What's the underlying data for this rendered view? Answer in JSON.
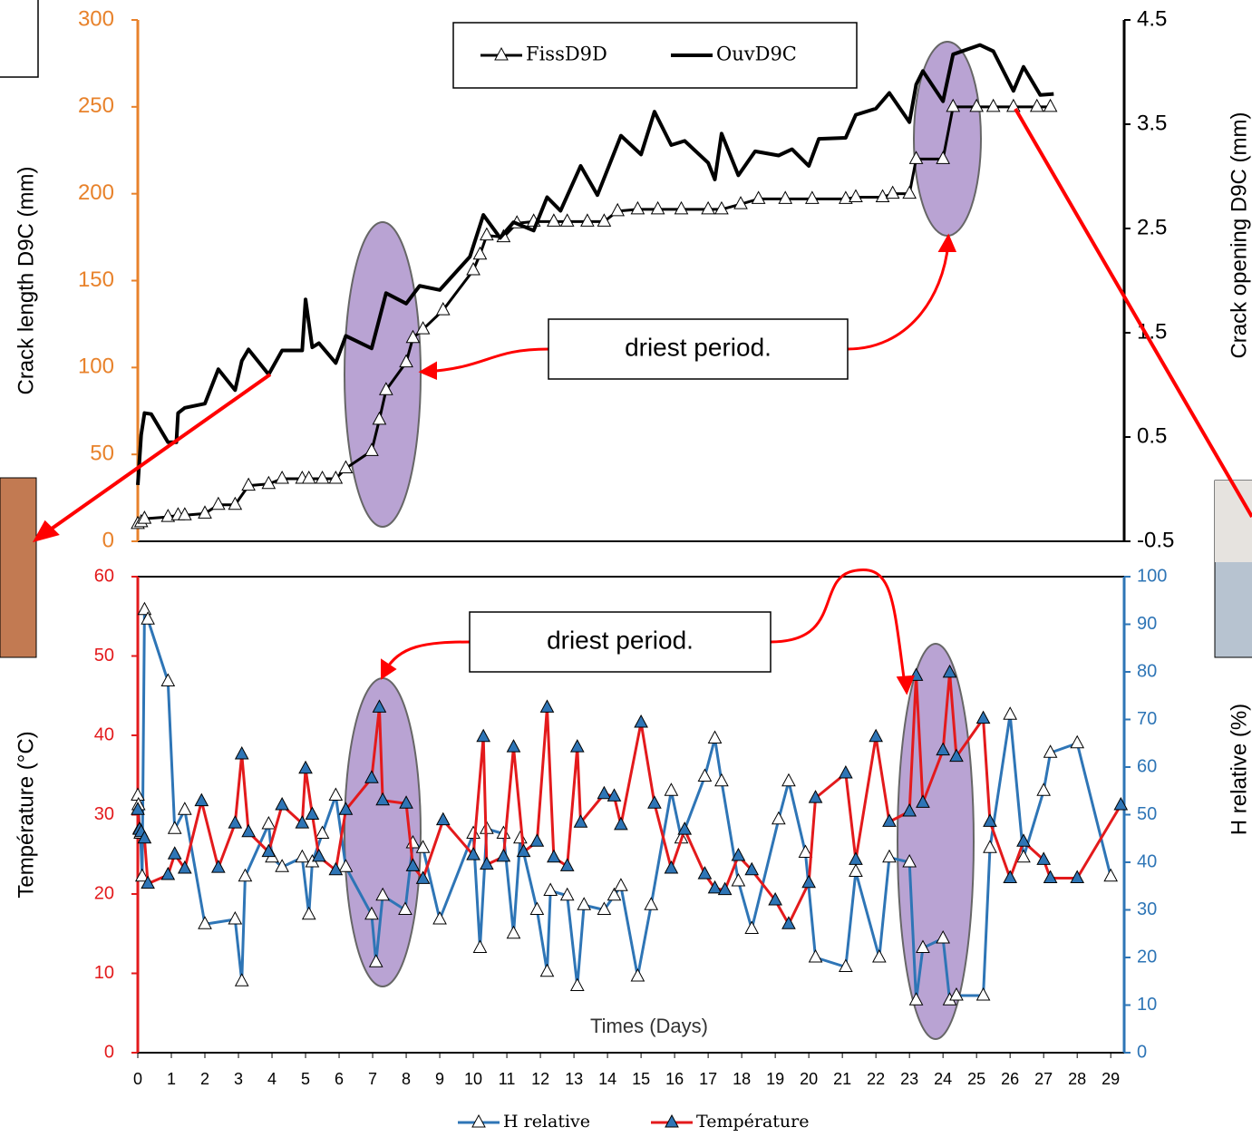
{
  "chart_data": [
    {
      "type": "line",
      "ylabel": "Crack length D9C (mm)",
      "y2label": "Crack opening  D9C (mm)",
      "xlim": [
        0,
        29.4
      ],
      "ylim": [
        0,
        300
      ],
      "yticks": [
        0,
        50,
        100,
        150,
        200,
        250,
        300
      ],
      "y2lim": [
        -0.5,
        4.5
      ],
      "y2ticks": [
        -0.5,
        0.5,
        1.5,
        2.5,
        3.5,
        4.5
      ],
      "y_axis_color": "#e8822b",
      "y2_axis_color": "#000000",
      "legend_position": "top-center",
      "legend_box": true,
      "annotations": [
        "driest period."
      ],
      "series": [
        {
          "name": "FissD9D",
          "color": "#000000",
          "marker": "triangle",
          "marker_fill": "#ffffff",
          "axis": "y",
          "x": [
            0,
            0.1,
            0.2,
            0.9,
            1.2,
            1.4,
            2.0,
            2.4,
            2.9,
            3.3,
            3.9,
            4.3,
            4.9,
            5.1,
            5.5,
            5.9,
            6.2,
            6.97,
            7.2,
            7.4,
            8.0,
            8.2,
            8.5,
            9.1,
            10.0,
            10.2,
            10.4,
            10.9,
            11.3,
            11.8,
            12.4,
            12.8,
            13.4,
            13.9,
            14.3,
            14.9,
            15.5,
            16.2,
            17.0,
            17.4,
            17.97,
            18.5,
            19.3,
            20.1,
            21.1,
            21.4,
            22.2,
            22.5,
            23.0,
            23.2,
            24.0,
            24.3,
            25.0,
            25.5,
            26.1,
            26.8,
            27.2
          ],
          "values": [
            10,
            11,
            13,
            14,
            15,
            15,
            16,
            21,
            21,
            32,
            33,
            36,
            36,
            36,
            36,
            36,
            42,
            52,
            70,
            87,
            103,
            117,
            122,
            133,
            156,
            165,
            176,
            175,
            183,
            184,
            184,
            184,
            184,
            184,
            190,
            191,
            191,
            191,
            191,
            191,
            194,
            197,
            197,
            197,
            197,
            198,
            198,
            200,
            200,
            220,
            220,
            250,
            250,
            250,
            250,
            250,
            250
          ]
        },
        {
          "name": "OuvD9C",
          "color": "#000000",
          "marker": "none",
          "axis": "y2",
          "x": [
            0,
            0.1,
            0.2,
            0.4,
            0.9,
            1.15,
            1.2,
            1.4,
            2.0,
            2.4,
            2.9,
            3.1,
            3.3,
            3.9,
            4.3,
            4.9,
            5.0,
            5.2,
            5.4,
            5.9,
            6.2,
            6.97,
            7.4,
            8.0,
            8.4,
            9.0,
            9.9,
            10.3,
            10.8,
            11.2,
            11.8,
            12.2,
            12.6,
            13.2,
            13.7,
            14.4,
            15.0,
            15.4,
            15.9,
            16.3,
            17.0,
            17.2,
            17.4,
            17.9,
            18.4,
            19.1,
            19.5,
            20.0,
            20.3,
            21.1,
            21.4,
            22.0,
            22.4,
            23.0,
            23.2,
            23.4,
            24.0,
            24.3,
            25.1,
            25.5,
            26.1,
            26.4,
            26.9,
            27.3
          ],
          "values": [
            0.04,
            0.52,
            0.73,
            0.72,
            0.45,
            0.45,
            0.73,
            0.78,
            0.82,
            1.15,
            0.95,
            1.23,
            1.34,
            1.1,
            1.33,
            1.33,
            1.82,
            1.36,
            1.4,
            1.21,
            1.47,
            1.35,
            1.88,
            1.78,
            1.95,
            1.91,
            2.23,
            2.63,
            2.41,
            2.56,
            2.48,
            2.8,
            2.67,
            3.1,
            2.82,
            3.39,
            3.21,
            3.62,
            3.3,
            3.34,
            3.13,
            2.97,
            3.41,
            3.01,
            3.24,
            3.2,
            3.26,
            3.1,
            3.36,
            3.37,
            3.59,
            3.65,
            3.8,
            3.52,
            3.88,
            4.01,
            3.72,
            4.17,
            4.26,
            4.2,
            3.82,
            4.05,
            3.78,
            3.79
          ]
        }
      ]
    },
    {
      "type": "line",
      "xlabel": "Times (Days)",
      "ylabel": "Température  (°C)",
      "y2label": "H relative  (%)",
      "xlim": [
        0,
        29.4
      ],
      "xticks": [
        0,
        1,
        2,
        3,
        4,
        5,
        6,
        7,
        8,
        9,
        10,
        11,
        12,
        13,
        14,
        15,
        16,
        17,
        18,
        19,
        20,
        21,
        22,
        23,
        24,
        25,
        26,
        27,
        28,
        29
      ],
      "ylim": [
        0,
        60
      ],
      "yticks": [
        0,
        10,
        20,
        30,
        40,
        50,
        60
      ],
      "y2lim": [
        0,
        100
      ],
      "y2ticks": [
        0,
        10,
        20,
        30,
        40,
        50,
        60,
        70,
        80,
        90,
        100
      ],
      "y_axis_color": "#e31a1c",
      "y2_axis_color": "#2e75b6",
      "legend_position": "bottom",
      "legend_box": false,
      "annotations": [
        "driest period."
      ],
      "series": [
        {
          "name": "H relative",
          "color": "#2e75b6",
          "marker": "triangle",
          "marker_fill": "#ffffff",
          "axis": "y2",
          "x": [
            0,
            0.02,
            0.05,
            0.08,
            0.13,
            0.2,
            0.3,
            0.9,
            1.1,
            1.4,
            2.0,
            2.9,
            3.1,
            3.2,
            3.9,
            4.0,
            4.3,
            4.9,
            5.1,
            5.2,
            5.5,
            5.9,
            6.2,
            6.97,
            7.1,
            7.3,
            7.97,
            8.2,
            8.5,
            9.0,
            10.0,
            10.2,
            10.4,
            10.9,
            11.2,
            11.4,
            11.9,
            12.2,
            12.3,
            12.8,
            13.1,
            13.3,
            13.9,
            14.2,
            14.4,
            14.9,
            15.3,
            15.9,
            16.2,
            16.9,
            17.2,
            17.4,
            17.9,
            18.3,
            19.1,
            19.4,
            19.9,
            20.2,
            21.1,
            21.4,
            22.1,
            22.4,
            23.0,
            23.2,
            23.4,
            24.0,
            24.2,
            24.4,
            25.2,
            25.4,
            26.0,
            26.4,
            27.0,
            27.2,
            28.0,
            29.0
          ],
          "values": [
            54,
            52,
            47,
            46,
            37,
            93,
            91,
            78,
            47,
            51,
            27,
            28,
            15,
            37,
            48,
            41,
            39,
            41,
            29,
            40,
            46,
            54,
            39,
            29,
            19,
            33,
            30,
            44,
            43,
            28,
            46,
            22,
            47,
            46,
            25,
            45,
            30,
            17,
            34,
            33,
            14,
            31,
            30,
            33,
            35,
            16,
            31,
            55,
            45,
            58,
            66,
            57,
            36,
            26,
            49,
            57,
            42,
            20,
            18,
            38,
            20,
            41,
            40,
            11,
            22,
            24,
            11,
            12,
            12,
            43,
            71,
            41,
            55,
            63,
            65,
            37
          ]
        },
        {
          "name": "Température",
          "color": "#e31a1c",
          "marker": "triangle",
          "marker_fill": "#2e75b6",
          "axis": "y",
          "x": [
            0,
            0.05,
            0.1,
            0.2,
            0.3,
            0.9,
            1.1,
            1.4,
            1.9,
            2.4,
            2.9,
            3.1,
            3.3,
            3.9,
            4.3,
            4.9,
            5.0,
            5.2,
            5.4,
            5.9,
            6.2,
            6.97,
            7.2,
            7.3,
            8.0,
            8.2,
            8.5,
            9.1,
            10.0,
            10.3,
            10.4,
            10.9,
            11.2,
            11.5,
            11.9,
            12.2,
            12.4,
            12.8,
            13.1,
            13.2,
            13.9,
            14.2,
            14.4,
            15.0,
            15.4,
            15.9,
            16.3,
            16.9,
            17.2,
            17.5,
            17.9,
            18.3,
            19.0,
            19.4,
            20.0,
            20.2,
            21.1,
            21.4,
            22.0,
            22.4,
            23.0,
            23.2,
            23.4,
            24.0,
            24.2,
            24.4,
            25.2,
            25.4,
            26.0,
            26.4,
            27.0,
            27.2,
            28.0,
            29.3
          ],
          "values": [
            30.6,
            28.1,
            27.8,
            27,
            21.3,
            22.4,
            25,
            23.2,
            31.7,
            23.3,
            28.9,
            37.6,
            27.8,
            25.3,
            31.2,
            28.9,
            35.8,
            30,
            24.7,
            23,
            30.6,
            34.6,
            43.5,
            31.8,
            31.4,
            23.5,
            21.9,
            29.3,
            24.9,
            39.8,
            23.7,
            24.7,
            38.5,
            25.3,
            26.6,
            43.5,
            24.6,
            23.5,
            38.5,
            29,
            32.6,
            32.3,
            28.7,
            41.6,
            31.4,
            23.2,
            28.1,
            22.5,
            20.7,
            20.5,
            24.8,
            23,
            19.2,
            16.2,
            21.4,
            32.1,
            35.2,
            24.3,
            39.8,
            29.1,
            30.4,
            47.5,
            31.5,
            38.1,
            47.9,
            37.3,
            42.1,
            29.1,
            22,
            26.6,
            24.3,
            22,
            22,
            31.2
          ]
        }
      ]
    }
  ]
}
